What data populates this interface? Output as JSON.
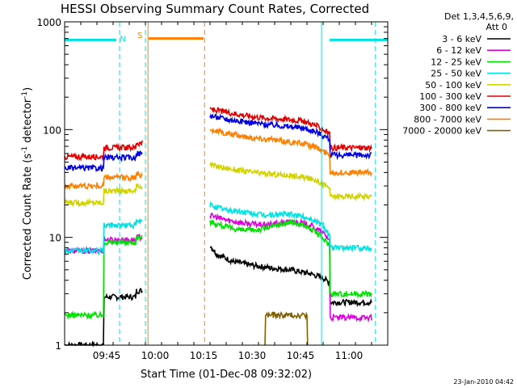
{
  "chart_data": {
    "type": "line",
    "title": "HESSI Observing Summary Count Rates, Corrected",
    "xlabel": "Start Time (01-Dec-08 09:32:02)",
    "ylabel_parts": [
      "Corrected Count Rate (s",
      "-1",
      " detector",
      "-1",
      ")"
    ],
    "x_scale": "time (minutes after 09:32:02)",
    "xlim": [
      0,
      100
    ],
    "y_scale": "log",
    "ylim": [
      1,
      1000
    ],
    "x_ticks": [
      {
        "t": 13,
        "label": "09:45"
      },
      {
        "t": 28,
        "label": "10:00"
      },
      {
        "t": 43,
        "label": "10:15"
      },
      {
        "t": 58,
        "label": "10:30"
      },
      {
        "t": 73,
        "label": "10:45"
      },
      {
        "t": 88,
        "label": "11:00"
      }
    ],
    "y_ticks": [
      {
        "v": 1,
        "label": "1"
      },
      {
        "v": 10,
        "label": "10"
      },
      {
        "v": 100,
        "label": "100"
      },
      {
        "v": 1000,
        "label": "1000"
      }
    ],
    "legend": {
      "position": "right",
      "header": [
        "Det 1,3,4,5,6,9,",
        "Att 0"
      ]
    },
    "series": [
      {
        "name": "3 - 6 keV",
        "color": "#000000",
        "segments": [
          {
            "t": [
              0,
              12,
              12.2,
              22,
              22.2,
              24
            ],
            "v": [
              1,
              1,
              2.8,
              2.8,
              3.2,
              3.2
            ]
          },
          {
            "t": [
              45,
              47,
              52,
              58,
              64,
              70,
              76,
              80,
              82,
              82.2,
              95
            ],
            "v": [
              8.5,
              7,
              6,
              5.5,
              5.2,
              5,
              4.6,
              4.2,
              3.8,
              2.5,
              2.5
            ]
          }
        ]
      },
      {
        "name": "6 - 12 keV",
        "color": "#e100e1",
        "segments": [
          {
            "t": [
              0,
              12,
              12.2,
              22,
              22.2,
              24
            ],
            "v": [
              7.5,
              7.5,
              9.5,
              9.5,
              10,
              10
            ]
          },
          {
            "t": [
              45,
              50,
              56,
              62,
              68,
              72,
              76,
              80,
              82,
              82.2,
              95
            ],
            "v": [
              16,
              14.5,
              13.5,
              13,
              13.8,
              14,
              13,
              11,
              9.5,
              1.8,
              1.8
            ]
          }
        ]
      },
      {
        "name": "12 - 25 keV",
        "color": "#00e100",
        "segments": [
          {
            "t": [
              0,
              12,
              12.2,
              22,
              22.2,
              24
            ],
            "v": [
              1.9,
              1.9,
              9,
              9,
              10,
              10
            ]
          },
          {
            "t": [
              45,
              50,
              56,
              60,
              66,
              70,
              74,
              78,
              82,
              82.2,
              95
            ],
            "v": [
              14,
              12.5,
              11.5,
              11.8,
              13,
              13.8,
              13,
              11,
              8.5,
              3,
              3
            ]
          }
        ]
      },
      {
        "name": "25 - 50 keV",
        "color": "#00e1e1",
        "segments": [
          {
            "t": [
              0,
              12,
              12.2,
              22,
              22.2,
              24
            ],
            "v": [
              7.5,
              7.5,
              13,
              13,
              14,
              14
            ]
          },
          {
            "t": [
              45,
              50,
              56,
              62,
              68,
              72,
              76,
              80,
              82,
              82.2,
              95
            ],
            "v": [
              20,
              18,
              17,
              16,
              16.5,
              16,
              15,
              13,
              10.5,
              8,
              8
            ]
          }
        ]
      },
      {
        "name": "50 - 100 keV",
        "color": "#d2d200",
        "segments": [
          {
            "t": [
              0,
              12,
              12.2,
              22,
              22.2,
              24
            ],
            "v": [
              21,
              21,
              27,
              27,
              30,
              30
            ]
          },
          {
            "t": [
              45,
              50,
              56,
              62,
              68,
              74,
              78,
              80,
              82,
              82.2,
              95
            ],
            "v": [
              47,
              44,
              41,
              39,
              38,
              36,
              34,
              31,
              29,
              24,
              24
            ]
          }
        ]
      },
      {
        "name": "100 - 300 keV",
        "color": "#e10000",
        "segments": [
          {
            "t": [
              0,
              12,
              12.2,
              22,
              22.2,
              24
            ],
            "v": [
              56,
              56,
              68,
              68,
              75,
              75
            ]
          },
          {
            "t": [
              45,
              50,
              56,
              62,
              68,
              74,
              78,
              80,
              82,
              82.2,
              95
            ],
            "v": [
              155,
              145,
              135,
              128,
              125,
              120,
              108,
              100,
              92,
              68,
              68
            ]
          }
        ]
      },
      {
        "name": "300 - 800 keV",
        "color": "#0000e1",
        "segments": [
          {
            "t": [
              0,
              12,
              12.2,
              22,
              22.2,
              24
            ],
            "v": [
              44,
              44,
              55,
              55,
              60,
              60
            ]
          },
          {
            "t": [
              45,
              50,
              56,
              62,
              68,
              74,
              78,
              80,
              82,
              82.2,
              95
            ],
            "v": [
              135,
              125,
              118,
              112,
              108,
              103,
              95,
              88,
              82,
              58,
              58
            ]
          }
        ]
      },
      {
        "name": "800 - 7000 keV",
        "color": "#ff7f00",
        "segments": [
          {
            "t": [
              0,
              12,
              12.2,
              22,
              22.2,
              24
            ],
            "v": [
              30,
              30,
              36,
              36,
              38,
              38
            ]
          },
          {
            "t": [
              45,
              50,
              56,
              62,
              68,
              74,
              78,
              80,
              82,
              82.2,
              95
            ],
            "v": [
              100,
              92,
              86,
              82,
              78,
              74,
              68,
              63,
              58,
              40,
              40
            ]
          }
        ]
      },
      {
        "name": "7000 - 20000 keV",
        "color": "#806000",
        "segments": [
          {
            "t": [
              62,
              62.2,
              75,
              75.2
            ],
            "v": [
              1,
              1.9,
              1.9,
              1
            ]
          }
        ]
      }
    ],
    "annotations": [
      {
        "kind": "bar",
        "label": "",
        "t0": 0,
        "t1": 16,
        "v": 680,
        "color": "#00e1e1"
      },
      {
        "kind": "bar",
        "label": "",
        "t0": 82,
        "t1": 100,
        "v": 680,
        "color": "#00e1e1"
      },
      {
        "kind": "bar",
        "label": "",
        "t0": 26,
        "t1": 43,
        "v": 700,
        "color": "#ff7f00"
      },
      {
        "kind": "text",
        "label": "N",
        "t": 18,
        "v": 700,
        "color": "#00e1e1"
      },
      {
        "kind": "text",
        "label": "S",
        "t": 23.3,
        "v": 760,
        "color": "#ff7f00"
      },
      {
        "kind": "vline",
        "label": "",
        "t": 17,
        "color": "#00e1e1",
        "dash": true
      },
      {
        "kind": "vline",
        "label": "",
        "t": 25,
        "color": "#00e1e1",
        "dash": true
      },
      {
        "kind": "vline",
        "label": "",
        "t": 25.8,
        "color": "#ff7f00",
        "dash": false
      },
      {
        "kind": "vline",
        "label": "",
        "t": 43.3,
        "color": "#ff7f00",
        "dash": true
      },
      {
        "kind": "vline",
        "label": "",
        "t": 79.5,
        "color": "#00e1e1",
        "dash": false
      },
      {
        "kind": "vline",
        "label": "",
        "t": 96.2,
        "color": "#00e1e1",
        "dash": true
      }
    ]
  },
  "footer": {
    "stamp": "23-Jan-2010 04:42"
  }
}
